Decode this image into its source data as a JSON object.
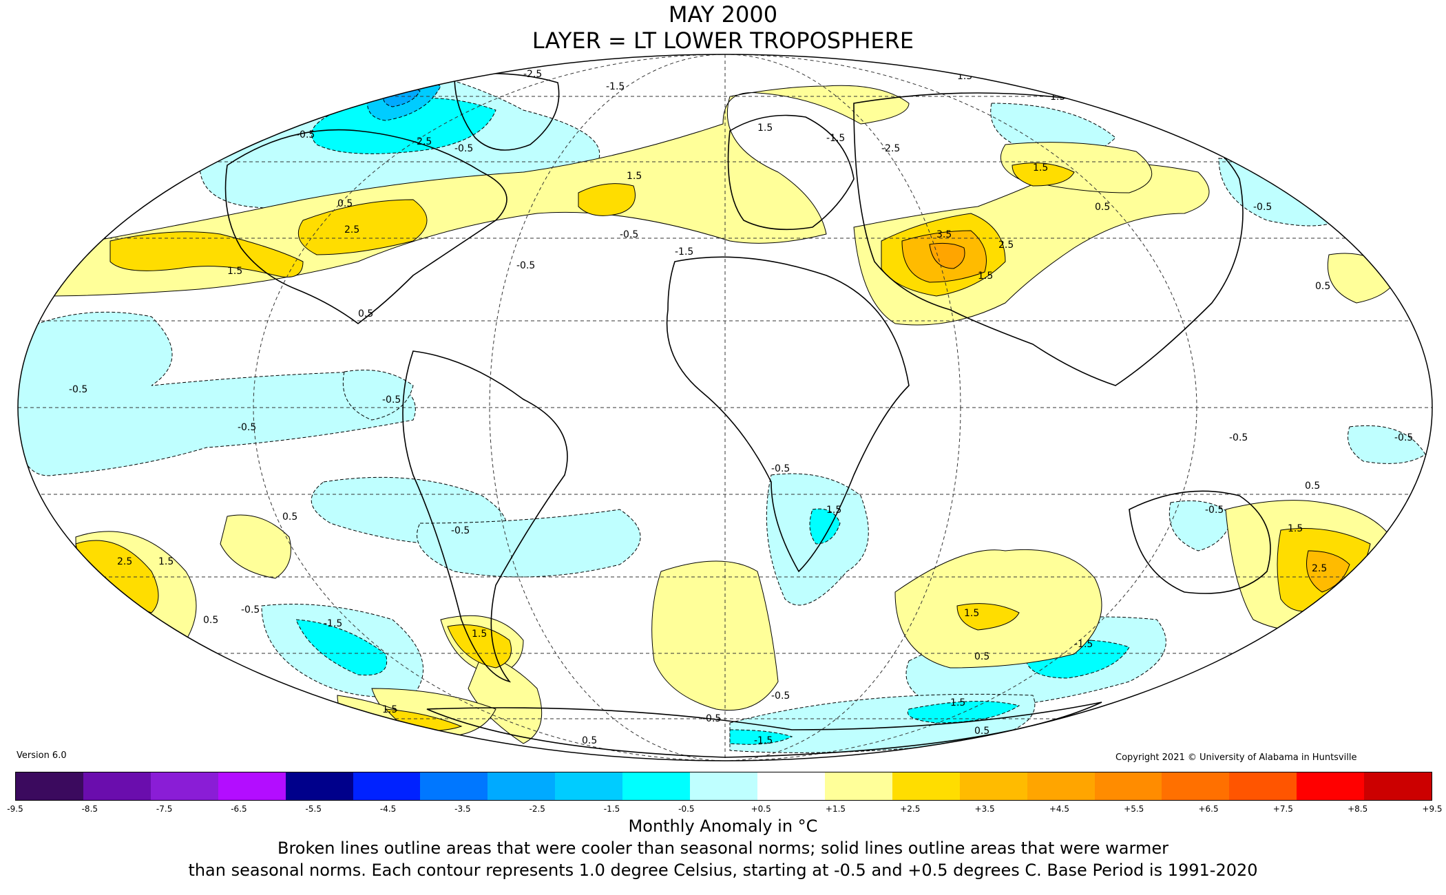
{
  "header": {
    "title_line1": "MAY 2000",
    "title_line2": "LAYER = LT LOWER TROPOSPHERE"
  },
  "footer": {
    "version": "Version 6.0",
    "copyright": "Copyright 2021 © University of Alabama in Huntsville",
    "colorbar_title": "Monthly Anomaly in °C",
    "note_line1": "Broken lines outline areas that were cooler than seasonal norms; solid lines outline areas that were warmer",
    "note_line2": "than seasonal norms. Each contour represents 1.0 degree Celsius, starting at -0.5 and +0.5 degrees C. Base Period is 1991-2020"
  },
  "legend": {
    "ticks": [
      "-9.5",
      "-8.5",
      "-7.5",
      "-6.5",
      "-5.5",
      "-4.5",
      "-3.5",
      "-2.5",
      "-1.5",
      "-0.5",
      "+0.5",
      "+1.5",
      "+2.5",
      "+3.5",
      "+4.5",
      "+5.5",
      "+6.5",
      "+7.5",
      "+8.5",
      "+9.5"
    ],
    "colors": [
      "#3b0a5e",
      "#6a0dad",
      "#8a1dd6",
      "#b30dff",
      "#00008b",
      "#0022ff",
      "#0077ff",
      "#00aaff",
      "#00ccff",
      "#00ffff",
      "#bfffff",
      "#ffffff",
      "#ffff99",
      "#ffdd00",
      "#ffbb00",
      "#ffa500",
      "#ff8c00",
      "#ff7000",
      "#ff5500",
      "#ff0000",
      "#cc0000"
    ]
  },
  "map": {
    "projection": "Mollweide",
    "colors": {
      "cool_1": "#bfffff",
      "cool_2": "#00ffff",
      "cool_3": "#00ccff",
      "cool_4": "#00aaff",
      "warm_1": "#ffff99",
      "warm_2": "#ffdd00",
      "warm_3": "#ffbb00",
      "warm_4": "#ffa500"
    },
    "contour_labels": [
      "-0.5",
      "-1.5",
      "-2.5",
      "0.5",
      "1.5",
      "2.5",
      "3.5"
    ]
  }
}
